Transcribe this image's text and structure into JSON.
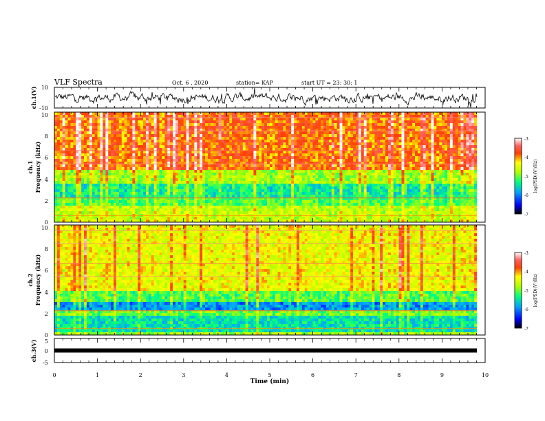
{
  "header": {
    "title": "VLF Spectra",
    "date": "Oct. 6 , 2020",
    "station": "station= KAP",
    "start": "start UT = 23: 30: 1"
  },
  "chart_data": [
    {
      "type": "line",
      "panel": "ch1-waveform",
      "ylabel": "ch.1(V)",
      "ylim": [
        -10,
        10
      ],
      "yticks": [
        "10",
        "-10"
      ],
      "xlim": [
        0,
        10
      ]
    },
    {
      "type": "heatmap",
      "panel": "ch1-spectrogram",
      "ylabel_line1": "ch.1",
      "ylabel_line2": "Frequency (kHz)",
      "ylim": [
        0,
        10
      ],
      "yticks": [
        "0",
        "2",
        "4",
        "6",
        "8",
        "10"
      ],
      "xlim": [
        0,
        10
      ],
      "colorbar": {
        "label": "log(PSD)(V²/Hz)",
        "range": [
          -7,
          -3
        ],
        "ticks": [
          "-3",
          "-4",
          "-5",
          "-6",
          "-7"
        ]
      },
      "bands": [
        {
          "from": 0.0,
          "to": 0.2,
          "level": -4.6
        },
        {
          "from": 0.2,
          "to": 1.5,
          "level": -4.7
        },
        {
          "from": 1.5,
          "to": 2.2,
          "level": -5.1
        },
        {
          "from": 2.2,
          "to": 3.6,
          "level": -5.4
        },
        {
          "from": 3.6,
          "to": 4.8,
          "level": -4.8
        },
        {
          "from": 4.8,
          "to": 10.0,
          "level": -3.9
        }
      ]
    },
    {
      "type": "heatmap",
      "panel": "ch2-spectrogram",
      "ylabel_line1": "ch.2",
      "ylabel_line2": "Frequency (kHz)",
      "ylim": [
        0,
        10
      ],
      "yticks": [
        "0",
        "2",
        "4",
        "6",
        "8",
        "10"
      ],
      "xlim": [
        0,
        10
      ],
      "colorbar": {
        "label": "log(PSD)(V²/Hz)",
        "range": [
          -7,
          -3
        ],
        "ticks": [
          "-3",
          "-4",
          "-5",
          "-6",
          "-7"
        ]
      },
      "bands": [
        {
          "from": 0.0,
          "to": 0.2,
          "level": -4.8
        },
        {
          "from": 0.2,
          "to": 1.8,
          "level": -5.5
        },
        {
          "from": 1.8,
          "to": 2.2,
          "level": -5.0
        },
        {
          "from": 2.2,
          "to": 3.0,
          "level": -5.9
        },
        {
          "from": 3.0,
          "to": 4.0,
          "level": -5.1
        },
        {
          "from": 4.0,
          "to": 10.0,
          "level": -4.4
        }
      ]
    },
    {
      "type": "line",
      "panel": "ch3-waveform",
      "ylabel": "ch.3(V)",
      "ylim": [
        -5,
        5
      ],
      "yticks": [
        "5",
        "0",
        "-5"
      ],
      "xlim": [
        0,
        10
      ],
      "level": 0
    }
  ],
  "xaxis": {
    "label": "Time (min)",
    "ticks": [
      "0",
      "1",
      "2",
      "3",
      "4",
      "5",
      "6",
      "7",
      "8",
      "9",
      "10"
    ]
  }
}
